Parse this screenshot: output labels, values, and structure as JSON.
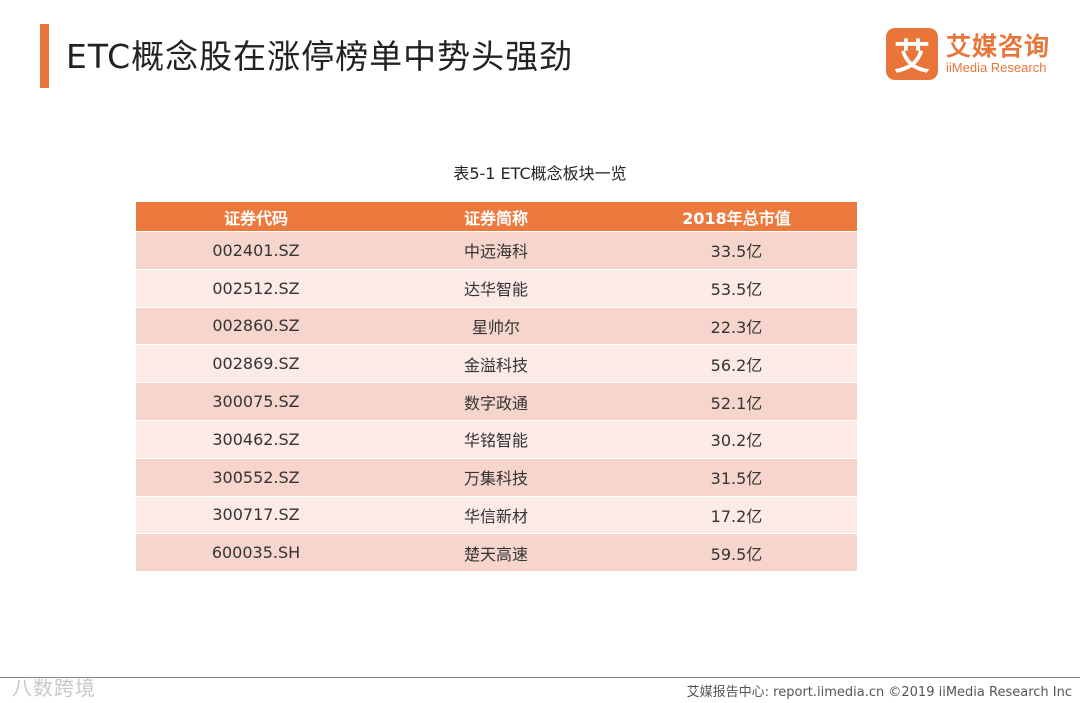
{
  "header": {
    "title": "ETC概念股在涨停榜单中势头强劲",
    "logo_mark": "艾",
    "logo_cn": "艾媒咨询",
    "logo_en": "iiMedia Research"
  },
  "table": {
    "caption": "表5-1 ETC概念板块一览",
    "columns": [
      "证券代码",
      "证券简称",
      "2018年总市值"
    ],
    "rows": [
      [
        "002401.SZ",
        "中远海科",
        "33.5亿"
      ],
      [
        "002512.SZ",
        "达华智能",
        "53.5亿"
      ],
      [
        "002860.SZ",
        "星帅尔",
        "22.3亿"
      ],
      [
        "002869.SZ",
        "金溢科技",
        "56.2亿"
      ],
      [
        "300075.SZ",
        "数字政通",
        "52.1亿"
      ],
      [
        "300462.SZ",
        "华铭智能",
        "30.2亿"
      ],
      [
        "300552.SZ",
        "万集科技",
        "31.5亿"
      ],
      [
        "300717.SZ",
        "华信新材",
        "17.2亿"
      ],
      [
        "600035.SH",
        "楚天高速",
        "59.5亿"
      ]
    ]
  },
  "footer": {
    "watermark": "八数跨境",
    "source": "艾媒报告中心: report.iimedia.cn ©2019 iiMedia Research Inc"
  },
  "colors": {
    "accent": "#e8763a",
    "header_bg": "#ec7a3e",
    "row_odd": "#f6d6cc",
    "row_even": "#fbeae5"
  }
}
